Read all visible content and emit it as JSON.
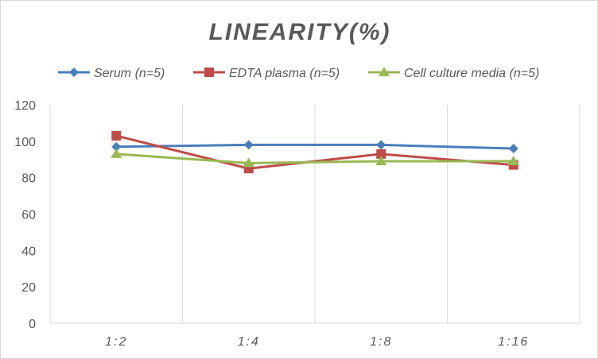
{
  "chart_data": {
    "type": "line",
    "title": "LINEARITY(%)",
    "categories": [
      "1:2",
      "1:4",
      "1:8",
      "1:16"
    ],
    "ylim": [
      0,
      120
    ],
    "yticks": [
      0,
      20,
      40,
      60,
      80,
      100,
      120
    ],
    "grid": "vertical",
    "legend": "top",
    "series": [
      {
        "name": "Serum (n=5)",
        "values": [
          97,
          98,
          98,
          96
        ],
        "color": "#4a7ebb",
        "marker": "diamond"
      },
      {
        "name": "EDTA plasma (n=5)",
        "values": [
          103,
          85,
          93,
          87
        ],
        "color": "#be4b48",
        "marker": "square"
      },
      {
        "name": "Cell culture media (n=5)",
        "values": [
          93,
          88,
          89,
          89
        ],
        "color": "#98b954",
        "marker": "triangle"
      }
    ]
  }
}
